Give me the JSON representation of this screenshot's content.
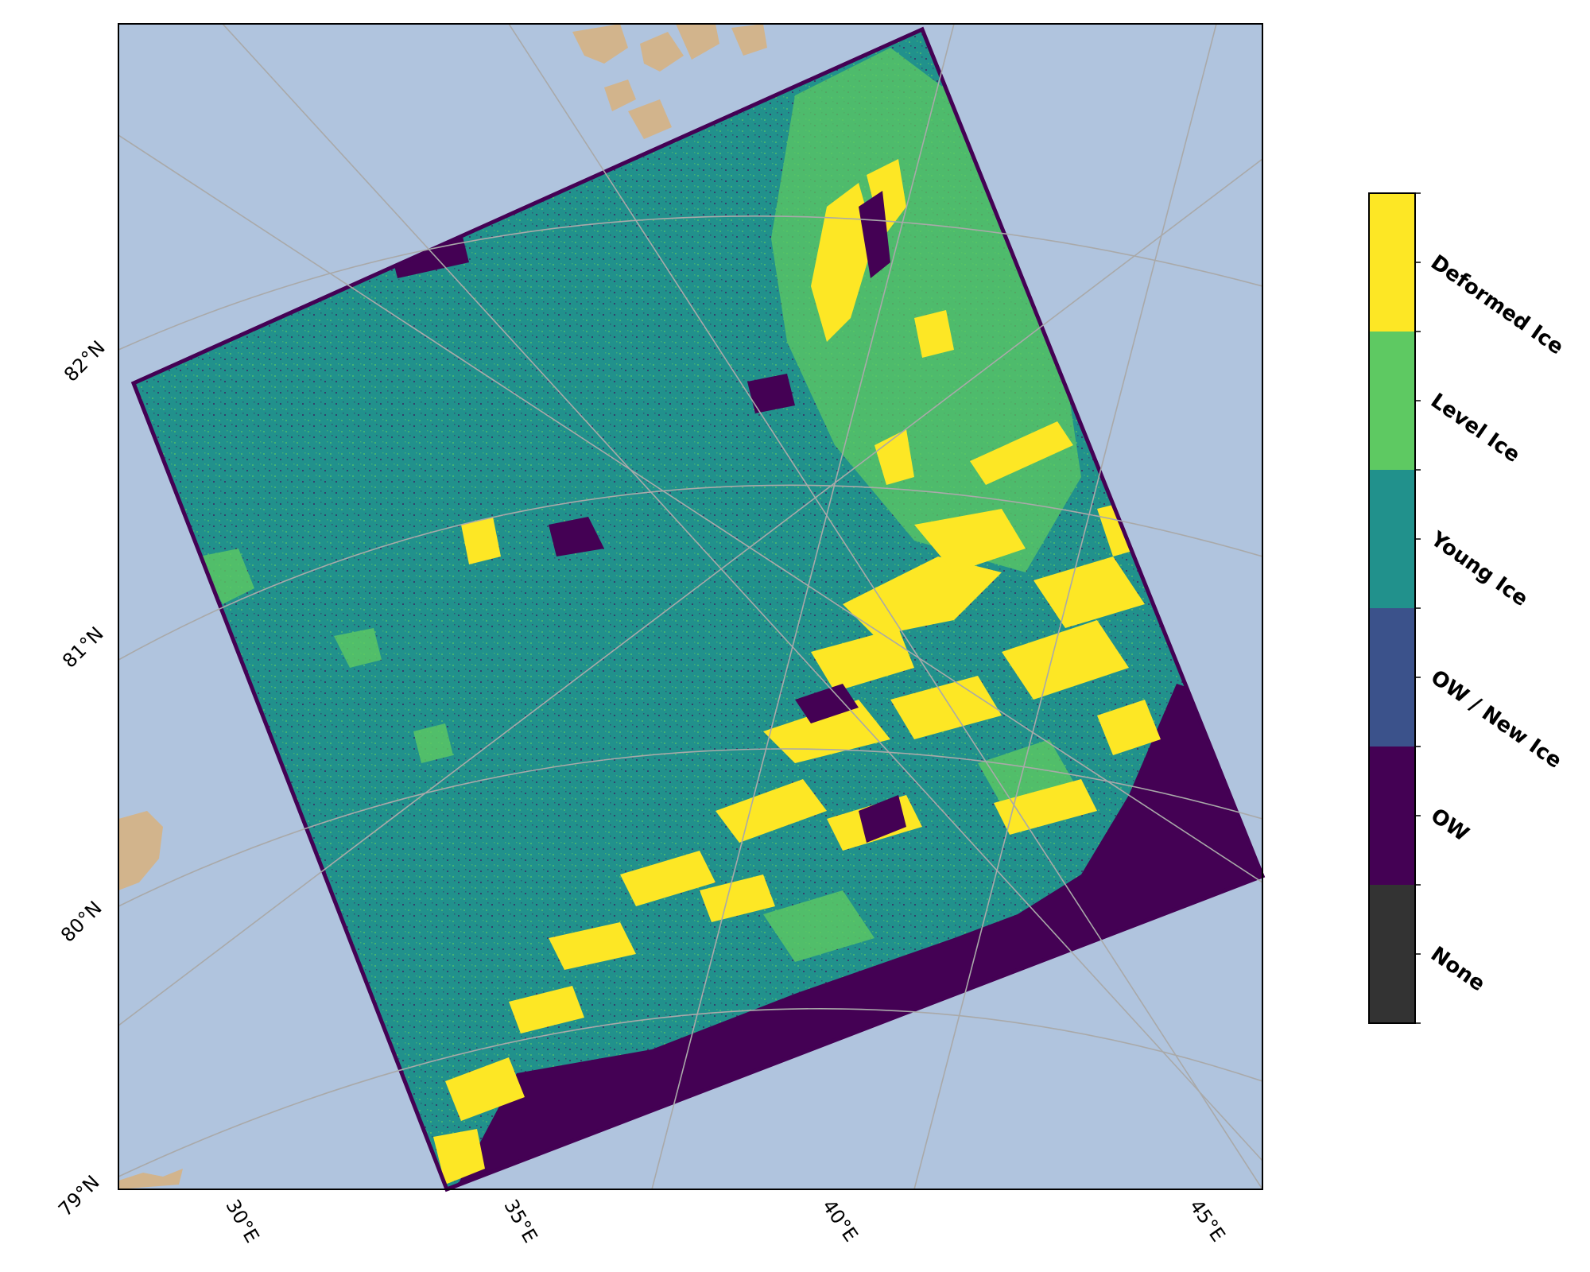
{
  "map": {
    "projection": "polar stereographic",
    "background_color": "#b0c4de",
    "land_color": "#d2b48c",
    "gridline_color": "#a9a9a9",
    "frame_color": "#000000",
    "latitude_labels": [
      "82°N",
      "81°N",
      "80°N",
      "79°N"
    ],
    "longitude_labels": [
      "30°E",
      "35°E",
      "40°E",
      "45°E"
    ]
  },
  "legend": {
    "type": "colorbar",
    "classes": [
      {
        "label": "Deformed Ice",
        "color": "#fde725"
      },
      {
        "label": "Level Ice",
        "color": "#5ec962"
      },
      {
        "label": "Young Ice",
        "color": "#21918c"
      },
      {
        "label": "OW / New Ice",
        "color": "#3b528b"
      },
      {
        "label": "OW",
        "color": "#440154"
      },
      {
        "label": "None",
        "color": "#333333"
      }
    ]
  }
}
